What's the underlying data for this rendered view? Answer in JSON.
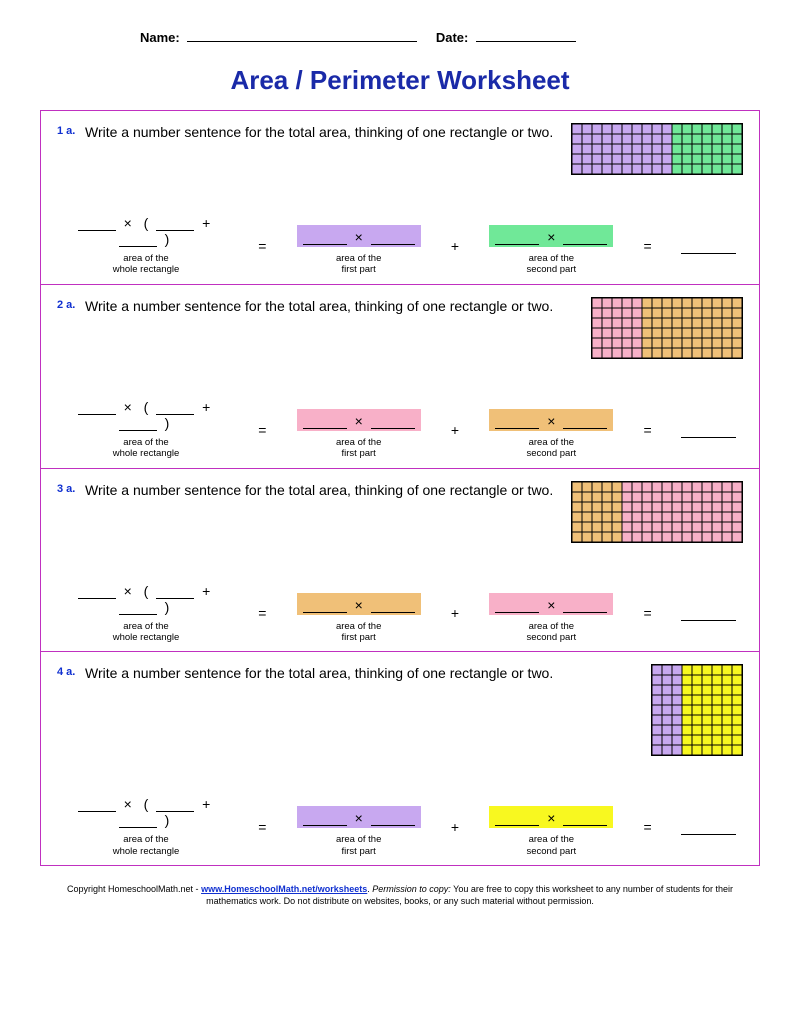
{
  "header": {
    "name_label": "Name:",
    "date_label": "Date:"
  },
  "title": "Area / Perimeter Worksheet",
  "instruction": "Write a number sentence for the total area, thinking of one rectangle or two.",
  "labels": {
    "whole": "area of the\nwhole rectangle",
    "first": "area of the\nfirst part",
    "second": "area of the\nsecond part"
  },
  "problems": [
    {
      "num": "1 a.",
      "rows": 5,
      "cols1": 10,
      "color1": "#c8a8f0",
      "cols2": 7,
      "color2": "#70e898",
      "cell": 10,
      "box1_color": "#c8a8f0",
      "box2_color": "#70e898"
    },
    {
      "num": "2 a.",
      "rows": 6,
      "cols1": 5,
      "color1": "#f8b0c8",
      "cols2": 10,
      "color2": "#f0c078",
      "cell": 10,
      "box1_color": "#f8b0c8",
      "box2_color": "#f0c078"
    },
    {
      "num": "3 a.",
      "rows": 6,
      "cols1": 5,
      "color1": "#f0c078",
      "cols2": 12,
      "color2": "#f8b0c8",
      "cell": 10,
      "box1_color": "#f0c078",
      "box2_color": "#f8b0c8"
    },
    {
      "num": "4 a.",
      "rows": 9,
      "cols1": 3,
      "color1": "#c8a8f0",
      "cols2": 6,
      "color2": "#f8f820",
      "cell": 10,
      "box1_color": "#c8a8f0",
      "box2_color": "#f8f820"
    }
  ],
  "footer": {
    "line1_prefix": "Copyright HomeschoolMath.net - ",
    "link_text": "www.HomeschoolMath.net/worksheets",
    "line1_mid": ". ",
    "perm": "Permission to copy:",
    "line1_suffix": " You are free to copy this worksheet to any number of students for their mathematics work. Do not distribute on websites, books, or any such material without permission."
  }
}
